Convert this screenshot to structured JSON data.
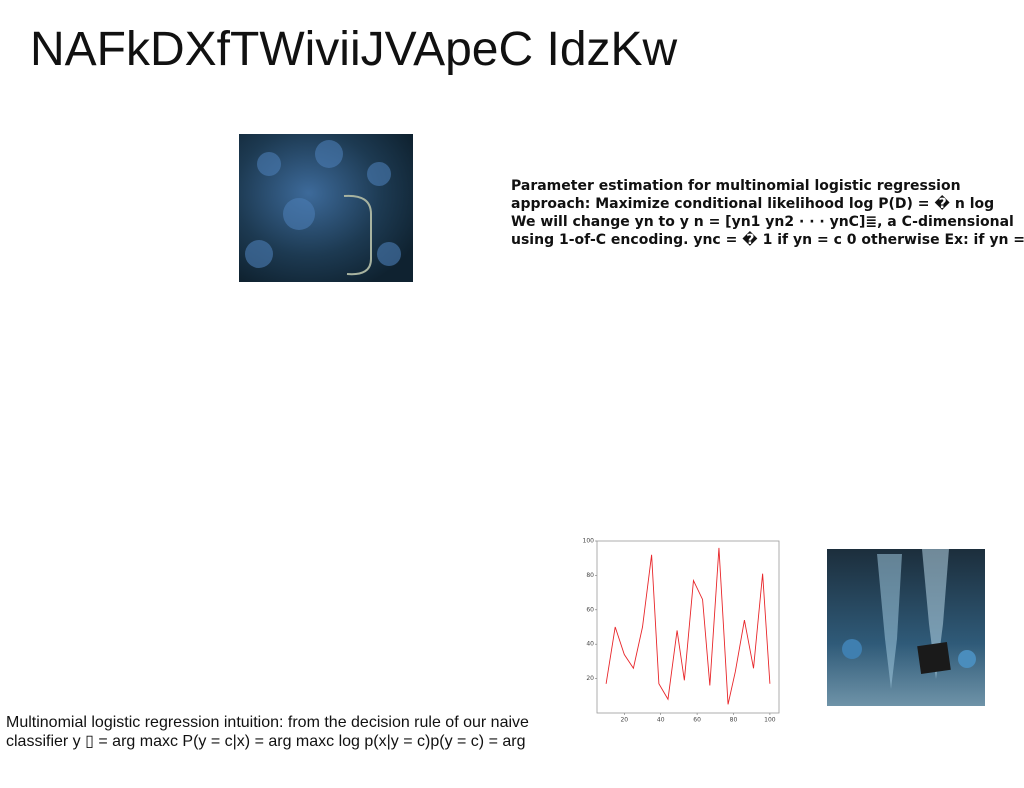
{
  "header": {
    "title": "NAFkDXfTWiviiJVApeC IdzKw"
  },
  "text_block_1": {
    "lines": [
      "Parameter estimation for multinomial logistic regression",
      "approach: Maximize conditional likelihood log P(D) = � n log",
      "We will change yn to y n = [yn1 yn2 · · · ynC]≣, a C-dimensional",
      "using 1-of-C encoding. ync = � 1 if yn = c 0 otherwise Ex: if yn ="
    ]
  },
  "text_block_2": {
    "lines": [
      "Multinomial logistic regression intuition: from the decision rule of our naive",
      "classifier y ▯ = arg maxc P(y = c|x) = arg maxc log p(x|y = c)p(y = c) = arg"
    ]
  },
  "chart_data": {
    "type": "line",
    "x": [
      10,
      15,
      20,
      25,
      30,
      35,
      39,
      44,
      49,
      53,
      58,
      63,
      67,
      72,
      77,
      81,
      86,
      91,
      96,
      100
    ],
    "series": [
      {
        "color": "#e8262a",
        "values": [
          17,
          50,
          34,
          26,
          50,
          92,
          17,
          8,
          48,
          19,
          77,
          66,
          16,
          96,
          5,
          24,
          54,
          26,
          81,
          17
        ]
      }
    ],
    "xlim": [
      5,
      105
    ],
    "xticks": [
      20,
      40,
      60,
      80,
      100
    ],
    "ylim": [
      0,
      100
    ],
    "yticks": [
      20,
      40,
      60,
      80,
      100
    ]
  }
}
